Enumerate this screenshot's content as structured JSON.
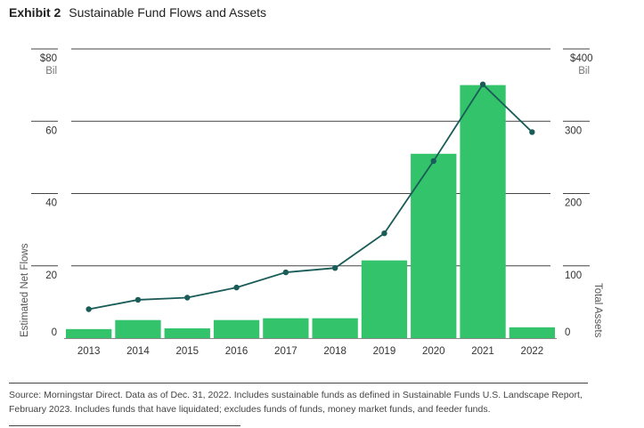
{
  "header": {
    "exhibit": "Exhibit 2",
    "title": "Sustainable Fund Flows and Assets"
  },
  "chart_data": {
    "type": "bar",
    "title": "Sustainable Fund Flows and Assets",
    "categories": [
      "2013",
      "2014",
      "2015",
      "2016",
      "2017",
      "2018",
      "2019",
      "2020",
      "2021",
      "2022"
    ],
    "series": [
      {
        "name": "Estimated Net Flows",
        "type": "bar",
        "axis": "left",
        "values": [
          2.5,
          5,
          2.7,
          5,
          5.5,
          5.5,
          21.5,
          51,
          70,
          3
        ]
      },
      {
        "name": "Total Assets",
        "type": "line",
        "axis": "right",
        "values": [
          40,
          53,
          56,
          70,
          91,
          97,
          145,
          245,
          351,
          285
        ]
      }
    ],
    "left_axis": {
      "label": "Estimated Net Flows",
      "ylim": [
        0,
        80
      ],
      "ticks": [
        "0",
        "20",
        "40",
        "60",
        "$80"
      ],
      "unit": "Bil"
    },
    "right_axis": {
      "label": "Total Assets",
      "ylim": [
        0,
        400
      ],
      "ticks": [
        "0",
        "100",
        "200",
        "300",
        "$400"
      ],
      "unit": "Bil"
    },
    "colors": {
      "bar": "#33c36a",
      "line": "#1a5c58",
      "grid": "#444444"
    },
    "grid": true,
    "legend": "none"
  },
  "footer": {
    "source": "Source: Morningstar Direct. Data as of Dec. 31, 2022. Includes sustainable funds as defined in Sustainable Funds U.S. Landscape Report, February 2023. Includes funds that have liquidated; excludes funds of funds, money market funds, and feeder funds."
  }
}
